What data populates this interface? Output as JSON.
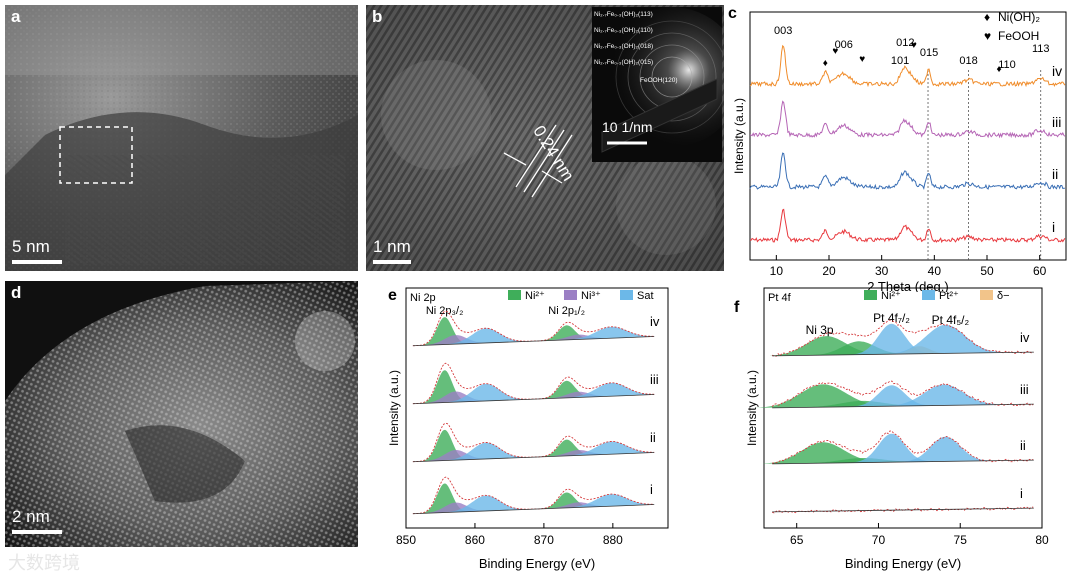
{
  "panels": {
    "a": {
      "label": "a",
      "scale": "5 nm"
    },
    "b": {
      "label": "b",
      "scale": "1 nm",
      "spacing": "0.24 nm",
      "saed_scale": "10 1/nm",
      "saed_rings": [
        "Ni₂.₇Fe₀.₃(OH)₂(113)",
        "Ni₂.₇Fe₀.₃(OH)₂(110)",
        "Ni₂.₇Fe₀.₃(OH)₂(018)",
        "Ni₂.₇Fe₀.₃(OH)₂(015)",
        "FeOOH(120)"
      ]
    },
    "d": {
      "label": "d",
      "scale": "2 nm"
    }
  },
  "watermark": "大数跨境",
  "chart_data": [
    {
      "panel": "c",
      "type": "line",
      "title": "",
      "xlabel": "2 Theta (deg.)",
      "ylabel": "Intensity (a.u.)",
      "xlim": [
        5,
        65
      ],
      "xticks": [
        10,
        20,
        30,
        40,
        50,
        60
      ],
      "legend": [
        {
          "symbol": "♦",
          "name": "Ni(OH)₂"
        },
        {
          "symbol": "♥",
          "name": "FeOOH"
        }
      ],
      "peak_labels": [
        {
          "text": "003",
          "x": 11.3
        },
        {
          "text": "006",
          "x": 22.8
        },
        {
          "text": "101",
          "x": 33.5
        },
        {
          "text": "012",
          "x": 34.5
        },
        {
          "text": "015",
          "x": 39.0
        },
        {
          "text": "018",
          "x": 46.5
        },
        {
          "text": "110",
          "x": 53.8
        },
        {
          "text": "113",
          "x": 60.2
        }
      ],
      "markers": [
        {
          "symbol": "♦",
          "x": 19.3
        },
        {
          "symbol": "♥",
          "x": 21.2
        },
        {
          "symbol": "♥",
          "x": 26.3
        },
        {
          "symbol": "♥",
          "x": 36.1
        },
        {
          "symbol": "♦",
          "x": 52.3
        }
      ],
      "reference_lines": [
        38.8,
        46.5,
        60.2
      ],
      "peaks": [
        [
          11.3,
          0.45,
          1.0
        ],
        [
          19.3,
          0.5,
          0.3
        ],
        [
          22.8,
          1.2,
          0.28
        ],
        [
          34.2,
          0.7,
          0.38
        ],
        [
          35.5,
          0.8,
          0.2
        ],
        [
          38.9,
          0.35,
          0.42
        ],
        [
          46.5,
          1.0,
          0.1
        ],
        [
          59.6,
          0.6,
          0.12
        ],
        [
          60.8,
          0.5,
          0.1
        ]
      ],
      "series": [
        {
          "name": "i",
          "color": "#e8383d",
          "scale": 0.75
        },
        {
          "name": "ii",
          "color": "#3a6fb5",
          "scale": 0.85
        },
        {
          "name": "iii",
          "color": "#b565b5",
          "scale": 0.85
        },
        {
          "name": "iv",
          "color": "#f08c2a",
          "scale": 0.95
        }
      ]
    },
    {
      "panel": "e",
      "type": "area",
      "title": "Ni 2p",
      "xlabel": "Binding Energy (eV)",
      "ylabel": "Intensity (a.u.)",
      "xlim": [
        850,
        888
      ],
      "xticks": [
        850,
        860,
        870,
        880
      ],
      "legend": [
        {
          "name": "Ni²⁺",
          "color": "#3fae5a"
        },
        {
          "name": "Ni³⁺",
          "color": "#9b7fc4"
        },
        {
          "name": "Sat",
          "color": "#6cb8e8"
        }
      ],
      "annotations": [
        {
          "text": "Ni 2p₃/₂",
          "x": 855.6
        },
        {
          "text": "Ni 2p₁/₂",
          "x": 873.3
        }
      ],
      "components": [
        {
          "kind": "Ni2+",
          "center": 855.6,
          "width": 1.1,
          "height": 0.85
        },
        {
          "kind": "Ni3+",
          "center": 857.2,
          "width": 1.6,
          "height": 0.28
        },
        {
          "kind": "Sat",
          "center": 861.6,
          "width": 2.0,
          "height": 0.45
        },
        {
          "kind": "Ni2+",
          "center": 873.3,
          "width": 1.2,
          "height": 0.45
        },
        {
          "kind": "Ni3+",
          "center": 875.0,
          "width": 1.6,
          "height": 0.15
        },
        {
          "kind": "Sat",
          "center": 879.8,
          "width": 2.2,
          "height": 0.35
        }
      ],
      "series": [
        {
          "name": "i",
          "scale": 0.9
        },
        {
          "name": "ii",
          "scale": 0.95
        },
        {
          "name": "iii",
          "scale": 1.0
        },
        {
          "name": "iv",
          "scale": 0.85
        }
      ]
    },
    {
      "panel": "f",
      "type": "area",
      "title": "Pt 4f",
      "xlabel": "Binding Energy (eV)",
      "ylabel": "Intensity (a.u.)",
      "xlim": [
        63,
        80
      ],
      "xticks": [
        65,
        70,
        75,
        80
      ],
      "legend": [
        {
          "name": "Ni²⁺",
          "color": "#3fae5a"
        },
        {
          "name": "Pt²⁺",
          "color": "#6cb8e8"
        },
        {
          "name": "δ−",
          "color": "#f2c48a"
        }
      ],
      "annotations": [
        {
          "text": "Ni 3p",
          "x": 66.4
        },
        {
          "text": "Pt 4f₇/₂",
          "x": 70.8
        },
        {
          "text": "Pt 4f₅/₂",
          "x": 74.1
        }
      ],
      "series": [
        {
          "name": "i",
          "components": []
        },
        {
          "name": "ii",
          "components": [
            [
              66.6,
              1.3,
              0.55,
              "#3fae5a"
            ],
            [
              69.0,
              1.3,
              0.12,
              "#3fae5a"
            ],
            [
              70.8,
              0.8,
              0.75,
              "#6cb8e8"
            ],
            [
              74.1,
              0.9,
              0.65,
              "#6cb8e8"
            ]
          ]
        },
        {
          "name": "iii",
          "components": [
            [
              66.6,
              1.4,
              0.6,
              "#3fae5a"
            ],
            [
              69.0,
              1.3,
              0.15,
              "#3fae5a"
            ],
            [
              70.8,
              0.8,
              0.55,
              "#6cb8e8"
            ],
            [
              74.0,
              1.2,
              0.55,
              "#6cb8e8"
            ]
          ]
        },
        {
          "name": "iv",
          "components": [
            [
              66.8,
              1.2,
              0.5,
              "#3fae5a"
            ],
            [
              68.8,
              1.0,
              0.35,
              "#3fae5a"
            ],
            [
              70.8,
              0.8,
              0.8,
              "#6cb8e8"
            ],
            [
              72.5,
              0.6,
              0.2,
              "#f2c48a"
            ],
            [
              74.1,
              1.2,
              0.75,
              "#6cb8e8"
            ]
          ]
        }
      ]
    }
  ]
}
